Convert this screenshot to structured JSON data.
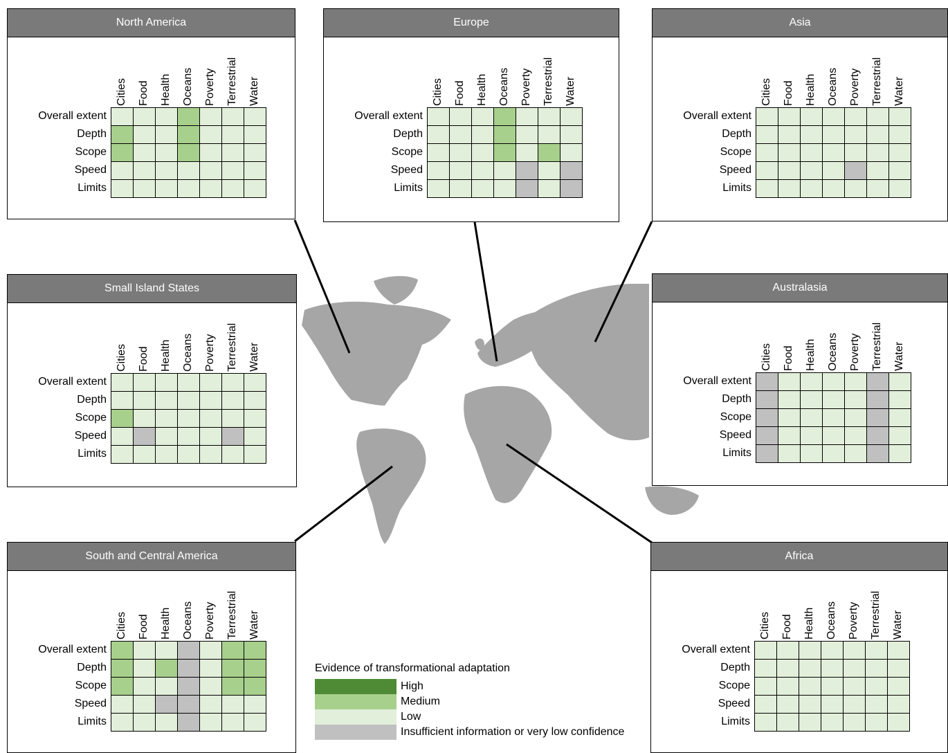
{
  "columns": [
    "Cities",
    "Food",
    "Health",
    "Oceans",
    "Poverty",
    "Terrestrial",
    "Water"
  ],
  "rows": [
    "Overall extent",
    "Depth",
    "Scope",
    "Speed",
    "Limits"
  ],
  "colors": {
    "H": "#4f8a34",
    "M": "#a8d08d",
    "L": "#e2efda",
    "I": "#c0c0c0",
    "panel_header": "#7a7a7a",
    "map": "#a6a6a6"
  },
  "regions": {
    "north_america": {
      "title": "North America",
      "grid": [
        "LLLMLLL",
        "MLLMLLL",
        "MLLMLLL",
        "LLLLLLL",
        "LLLLLLL"
      ]
    },
    "europe": {
      "title": "Europe",
      "grid": [
        "LLLMLLL",
        "LLLMLLL",
        "LLLMLML",
        "LLLLILI",
        "LLLLILI"
      ]
    },
    "asia": {
      "title": "Asia",
      "grid": [
        "LLLLLLL",
        "LLLLLLL",
        "LLLLLLL",
        "LLLLILL",
        "LLLLLLL"
      ]
    },
    "small_island_states": {
      "title": "Small Island States",
      "grid": [
        "LLLLLLL",
        "LLLLLLL",
        "MLLLLLL",
        "LILLLIL",
        "LLLLLLL"
      ]
    },
    "australasia": {
      "title": "Australasia",
      "grid": [
        "ILLLLIL",
        "ILLLLIL",
        "ILLLLIL",
        "ILLLLIL",
        "ILLLLIL"
      ]
    },
    "south_central_america": {
      "title": "South and Central America",
      "grid": [
        "MLLILMM",
        "MLMILMM",
        "MLLILMM",
        "LLIILLL",
        "LLLILLL"
      ]
    },
    "africa": {
      "title": "Africa",
      "grid": [
        "LLLLLLL",
        "LLLLLLL",
        "LLLLLLL",
        "LLLLLLL",
        "LLLLLLL"
      ]
    }
  },
  "legend": {
    "title": "Evidence of transformational adaptation",
    "items": [
      {
        "label": "High",
        "code": "H"
      },
      {
        "label": "Medium",
        "code": "M"
      },
      {
        "label": "Low",
        "code": "L"
      },
      {
        "label": "Insufficient information or very low confidence",
        "code": "I"
      }
    ]
  }
}
